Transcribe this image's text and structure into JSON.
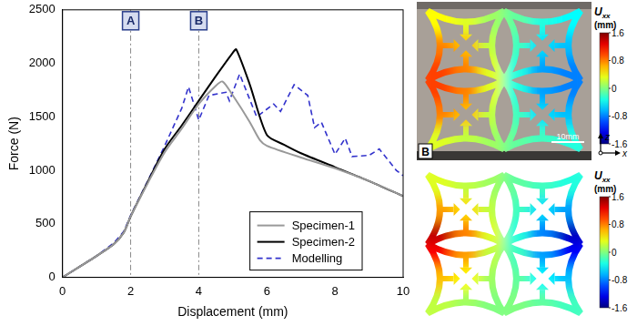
{
  "chart_data": {
    "type": "line",
    "x_label": "Displacement (mm)",
    "y_label": "Force (N)",
    "xlim": [
      0,
      10
    ],
    "xticks": [
      0,
      2,
      4,
      6,
      8,
      10
    ],
    "ylim": [
      0,
      2500
    ],
    "yticks": [
      0,
      500,
      1000,
      1500,
      2000,
      2500
    ],
    "grid": false,
    "legend": "lower right",
    "annotations": [
      {
        "x": 2,
        "label": "A"
      },
      {
        "x": 4,
        "label": "B"
      }
    ],
    "series": [
      {
        "name": "Specimen-1",
        "color": "#999999",
        "line_style": "solid",
        "x": [
          0,
          0.5,
          1,
          1.5,
          1.8,
          2,
          2.5,
          3,
          3.5,
          4,
          4.5,
          4.7,
          5,
          5.5,
          5.8,
          6,
          7,
          8,
          9,
          10
        ],
        "values": [
          0,
          100,
          200,
          310,
          420,
          570,
          880,
          1170,
          1390,
          1620,
          1790,
          1830,
          1700,
          1450,
          1280,
          1230,
          1120,
          1020,
          900,
          760
        ]
      },
      {
        "name": "Specimen-2",
        "color": "#000000",
        "line_style": "solid",
        "x": [
          0,
          0.5,
          1,
          1.5,
          1.8,
          2,
          2.5,
          3,
          3.5,
          4,
          4.5,
          5,
          5.1,
          5.5,
          6,
          6.5,
          7,
          8,
          9,
          10
        ],
        "values": [
          0,
          100,
          200,
          310,
          420,
          570,
          890,
          1200,
          1420,
          1650,
          1880,
          2100,
          2130,
          1800,
          1330,
          1240,
          1160,
          1030,
          900,
          760
        ]
      },
      {
        "name": "Modelling",
        "color": "#3333cc",
        "line_style": "dashed",
        "x": [
          0,
          0.5,
          1,
          1.5,
          1.8,
          2,
          2.5,
          3,
          3.5,
          3.7,
          4,
          4.3,
          4.8,
          4.9,
          5.2,
          5.7,
          6.2,
          6.4,
          6.8,
          7.2,
          7.4,
          7.6,
          8,
          8.3,
          8.5,
          9,
          9.3,
          9.8,
          10
        ],
        "values": [
          0,
          100,
          200,
          320,
          430,
          580,
          900,
          1230,
          1580,
          1780,
          1470,
          1700,
          1730,
          1650,
          1900,
          1500,
          1620,
          1550,
          1800,
          1700,
          1400,
          1450,
          1150,
          1300,
          1130,
          1140,
          1200,
          1000,
          950
        ]
      }
    ]
  },
  "panels": [
    {
      "kind": "photo",
      "label": "B",
      "scale_bar": "10mm",
      "axes": [
        "z",
        "x"
      ],
      "field": [
        [
          0.4,
          0.3,
          0.1,
          -0.1,
          -0.3,
          -0.4
        ],
        [
          0.8,
          0.6,
          0.2,
          -0.2,
          -0.5,
          -0.6
        ],
        [
          1.0,
          0.8,
          0.3,
          -0.3,
          -0.7,
          -0.8
        ],
        [
          1.0,
          0.8,
          0.3,
          -0.3,
          -0.7,
          -0.8
        ],
        [
          0.8,
          0.6,
          0.2,
          -0.2,
          -0.5,
          -0.6
        ],
        [
          0.3,
          0.2,
          0.1,
          -0.1,
          -0.2,
          -0.3
        ]
      ],
      "colorbar": {
        "symbol": "U",
        "subscript": "xx",
        "unit": "(mm)",
        "range": [
          -1.6,
          1.6
        ],
        "ticks": [
          1.6,
          0.8,
          0,
          -0.8,
          -1.6
        ]
      }
    },
    {
      "kind": "simulation",
      "field": [
        [
          0.3,
          0.2,
          0.1,
          -0.1,
          -0.2,
          -0.3
        ],
        [
          0.7,
          0.5,
          0.2,
          -0.2,
          -0.5,
          -0.7
        ],
        [
          1.4,
          0.8,
          0.3,
          -0.3,
          -0.8,
          -1.4
        ],
        [
          1.2,
          0.7,
          0.2,
          -0.2,
          -0.7,
          -1.2
        ],
        [
          0.6,
          0.4,
          0.1,
          -0.1,
          -0.4,
          -0.6
        ],
        [
          0.2,
          0.1,
          0.0,
          0.0,
          -0.1,
          -0.2
        ]
      ],
      "colorbar": {
        "symbol": "U",
        "subscript": "xx",
        "unit": "(mm)",
        "range": [
          -1.6,
          1.6
        ],
        "ticks": [
          1.6,
          0.8,
          0,
          -0.8,
          -1.6
        ]
      }
    }
  ]
}
